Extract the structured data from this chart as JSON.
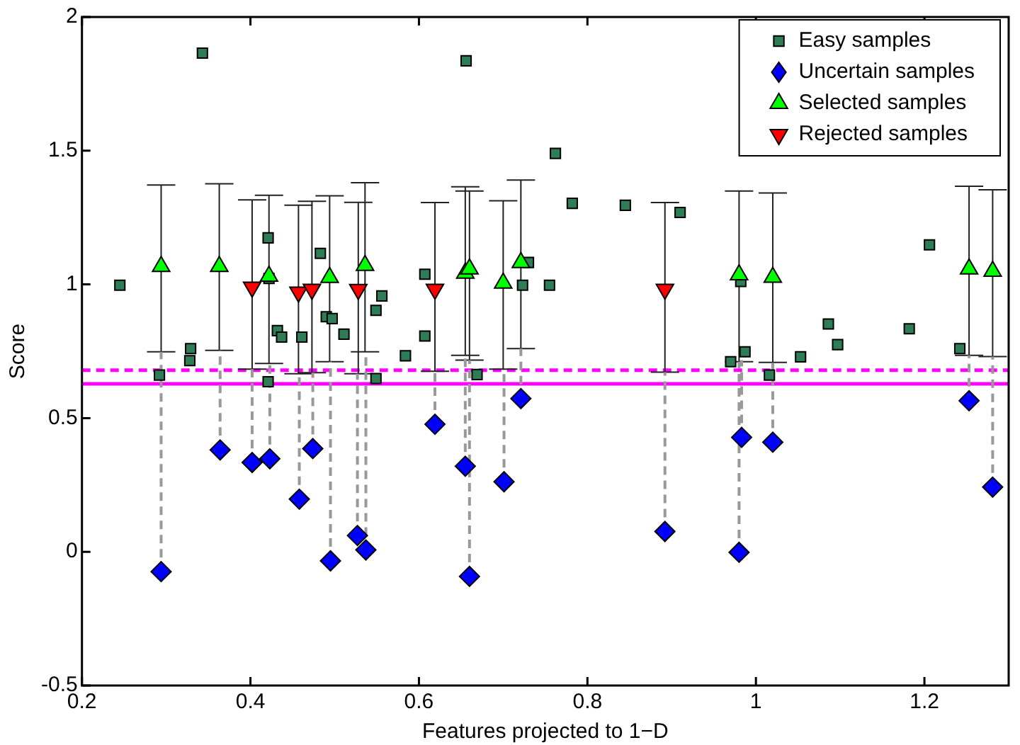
{
  "chart_data": {
    "type": "scatter",
    "xlabel": "Features projected to 1−D",
    "ylabel": "Score",
    "xlim": [
      0.2,
      1.3
    ],
    "xticks": [
      0.2,
      0.4,
      0.6,
      0.8,
      1,
      1.2
    ],
    "ylim": [
      -0.5,
      2
    ],
    "yticks": [
      -0.5,
      0,
      0.5,
      1,
      1.5,
      2
    ],
    "grid": false,
    "legend": "top right",
    "series": [
      {
        "type": "line",
        "color": "#999999",
        "line_style": "dashed",
        "marker": "none",
        "x": [
          0.294,
          0.294,
          null,
          0.364,
          0.364,
          null,
          0.402,
          0.402,
          null,
          0.423,
          0.423,
          null,
          0.458,
          0.458,
          null,
          0.474,
          0.474,
          null,
          0.495,
          0.495,
          null,
          0.527,
          0.527,
          null,
          0.537,
          0.537,
          null,
          0.619,
          0.619,
          null,
          0.655,
          0.655,
          null,
          0.66,
          0.66,
          null,
          0.701,
          0.701,
          null,
          0.721,
          0.721,
          null,
          0.892,
          0.892,
          null,
          0.983,
          0.983,
          null,
          0.98,
          0.98,
          null,
          1.02,
          1.02,
          null,
          1.253,
          1.253,
          null,
          1.281,
          1.281
        ],
        "values": [
          -0.074,
          0.748,
          null,
          0.381,
          0.753,
          null,
          0.334,
          0.683,
          null,
          0.348,
          0.704,
          null,
          0.197,
          0.666,
          null,
          0.386,
          0.67,
          null,
          -0.034,
          0.711,
          null,
          0.061,
          0.666,
          null,
          0.007,
          0.748,
          null,
          0.477,
          0.675,
          null,
          0.32,
          0.735,
          null,
          -0.092,
          0.717,
          null,
          0.262,
          0.683,
          null,
          0.573,
          0.76,
          null,
          0.076,
          0.672,
          null,
          0.428,
          0.717,
          null,
          -0.002,
          0.711,
          null,
          0.41,
          0.708,
          null,
          0.565,
          0.735,
          null,
          0.242,
          0.73
        ]
      },
      {
        "name": "Easy samples",
        "color": "#2e7d57",
        "marker": "square",
        "x": [
          0.343,
          0.245,
          0.421,
          0.422,
          0.483,
          0.49,
          0.497,
          0.432,
          0.437,
          0.461,
          0.511,
          0.549,
          0.556,
          0.329,
          0.328,
          0.584,
          0.292,
          0.421,
          0.549,
          0.656,
          0.762,
          0.782,
          0.845,
          0.91,
          0.607,
          0.607,
          0.73,
          0.723,
          0.755,
          0.97,
          0.982,
          0.669,
          0.987,
          1.053,
          1.086,
          1.097,
          1.182,
          1.206,
          1.242,
          1.016
        ],
        "values": [
          1.865,
          0.997,
          1.174,
          1.022,
          1.116,
          0.879,
          0.872,
          0.827,
          0.803,
          0.803,
          0.814,
          0.903,
          0.957,
          0.76,
          0.715,
          0.733,
          0.661,
          0.636,
          0.648,
          1.836,
          1.49,
          1.303,
          1.296,
          1.269,
          1.038,
          0.807,
          1.082,
          0.997,
          0.997,
          0.711,
          1.011,
          0.663,
          0.748,
          0.729,
          0.852,
          0.775,
          0.834,
          1.148,
          0.76,
          0.661
        ]
      },
      {
        "name": "Uncertain samples",
        "color": "#0000ff",
        "marker": "diamond",
        "x": [
          0.294,
          0.364,
          0.402,
          0.423,
          0.458,
          0.474,
          0.495,
          0.527,
          0.537,
          0.619,
          0.655,
          0.66,
          0.701,
          0.721,
          0.892,
          0.983,
          0.98,
          1.02,
          1.253,
          1.281
        ],
        "values": [
          -0.074,
          0.381,
          0.334,
          0.348,
          0.197,
          0.386,
          -0.034,
          0.061,
          0.007,
          0.477,
          0.32,
          -0.092,
          0.262,
          0.573,
          0.076,
          0.428,
          -0.002,
          0.41,
          0.565,
          0.242
        ]
      },
      {
        "name": "Selected samples",
        "color": "#00ff00",
        "marker": "triangle",
        "x": [
          0.294,
          0.363,
          0.422,
          0.494,
          0.536,
          0.655,
          0.66,
          0.7,
          0.721,
          0.98,
          1.02,
          1.253,
          1.281
        ],
        "values": [
          1.067,
          1.067,
          1.031,
          1.026,
          1.071,
          1.042,
          1.058,
          1.005,
          1.082,
          1.036,
          1.027,
          1.058,
          1.049
        ],
        "errors": [
          [
            0.748,
            1.372
          ],
          [
            0.753,
            1.376
          ],
          [
            0.704,
            1.333
          ],
          [
            0.711,
            1.331
          ],
          [
            0.748,
            1.38
          ],
          [
            0.735,
            1.365
          ],
          [
            0.717,
            1.349
          ],
          [
            0.683,
            1.313
          ],
          [
            0.76,
            1.39
          ],
          [
            0.711,
            1.349
          ],
          [
            0.708,
            1.342
          ],
          [
            0.735,
            1.367
          ],
          [
            0.73,
            1.354
          ]
        ]
      },
      {
        "name": "Rejected samples",
        "color": "#ff0000",
        "marker": "triangle-down",
        "x": [
          0.402,
          0.457,
          0.473,
          0.528,
          0.619,
          0.892
        ],
        "values": [
          0.99,
          0.971,
          0.982,
          0.981,
          0.982,
          0.982
        ],
        "errors": [
          [
            0.683,
            1.316
          ],
          [
            0.666,
            1.296
          ],
          [
            0.67,
            1.311
          ],
          [
            0.666,
            1.307
          ],
          [
            0.675,
            1.306
          ],
          [
            0.672,
            1.306
          ]
        ]
      }
    ],
    "ref_lines": [
      {
        "axis": "y",
        "value": 0.628,
        "color": "#ff00ff",
        "line_style": "solid"
      },
      {
        "axis": "y",
        "value": 0.679,
        "color": "#ff00ff",
        "line_style": "dashed"
      }
    ]
  }
}
